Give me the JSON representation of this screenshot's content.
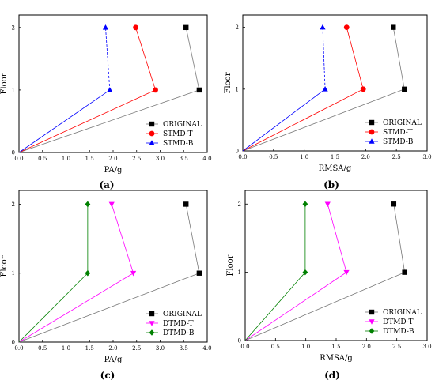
{
  "chart_data": [
    {
      "type": "line",
      "caption": "(a)",
      "xlabel": "PA/g",
      "ylabel": "Floor",
      "xlim": [
        0,
        4.0
      ],
      "ylim": [
        0,
        2.2
      ],
      "xticks": [
        "0.0",
        "0.5",
        "1.0",
        "1.5",
        "2.0",
        "2.5",
        "3.0",
        "3.5",
        "4.0"
      ],
      "yticks": [
        "0",
        "1",
        "2"
      ],
      "legend_position": "lower-right",
      "grid": false,
      "series": [
        {
          "name": "ORIGINAL",
          "color": "#000000",
          "marker": "square",
          "line_color": "#777777",
          "dashed_top": false,
          "x": [
            0,
            3.83,
            3.55
          ],
          "y": [
            0,
            1,
            2
          ]
        },
        {
          "name": "STMD-T",
          "color": "#ff0000",
          "marker": "circle",
          "line_color": "#ff0000",
          "dashed_top": false,
          "x": [
            0,
            2.9,
            2.48
          ],
          "y": [
            0,
            1,
            2
          ]
        },
        {
          "name": "STMD-B",
          "color": "#0000ff",
          "marker": "triangle-up",
          "line_color": "#0000ff",
          "dashed_top": true,
          "x": [
            0,
            1.93,
            1.84
          ],
          "y": [
            0,
            1,
            2
          ]
        }
      ]
    },
    {
      "type": "line",
      "caption": "(b)",
      "xlabel": "RMSA/g",
      "ylabel": "Floor",
      "xlim": [
        0,
        3.0
      ],
      "ylim": [
        0,
        2.2
      ],
      "xticks": [
        "0.0",
        "0.5",
        "1.0",
        "1.5",
        "2.0",
        "2.5",
        "3.0"
      ],
      "yticks": [
        "0",
        "1",
        "2"
      ],
      "legend_position": "lower-right",
      "grid": false,
      "series": [
        {
          "name": "ORIGINAL",
          "color": "#000000",
          "marker": "square",
          "line_color": "#777777",
          "dashed_top": false,
          "x": [
            0,
            2.63,
            2.45
          ],
          "y": [
            0,
            1,
            2
          ]
        },
        {
          "name": "STMD-T",
          "color": "#ff0000",
          "marker": "circle",
          "line_color": "#ff0000",
          "dashed_top": false,
          "x": [
            0,
            1.96,
            1.69
          ],
          "y": [
            0,
            1,
            2
          ]
        },
        {
          "name": "STMD-B",
          "color": "#0000ff",
          "marker": "triangle-up",
          "line_color": "#0000ff",
          "dashed_top": true,
          "x": [
            0,
            1.34,
            1.3
          ],
          "y": [
            0,
            1,
            2
          ]
        }
      ]
    },
    {
      "type": "line",
      "caption": "(c)",
      "xlabel": "PA/g",
      "ylabel": "Floor",
      "xlim": [
        0,
        4.0
      ],
      "ylim": [
        0,
        2.2
      ],
      "xticks": [
        "0.0",
        "0.5",
        "1.0",
        "1.5",
        "2.0",
        "2.5",
        "3.0",
        "3.5",
        "4.0"
      ],
      "yticks": [
        "0",
        "1",
        "2"
      ],
      "legend_position": "lower-right",
      "grid": false,
      "series": [
        {
          "name": "ORIGINAL",
          "color": "#000000",
          "marker": "square",
          "line_color": "#777777",
          "dashed_top": false,
          "x": [
            0,
            3.83,
            3.55
          ],
          "y": [
            0,
            1,
            2
          ]
        },
        {
          "name": "DTMD-T",
          "color": "#ff00ff",
          "marker": "triangle-down",
          "line_color": "#ff00ff",
          "dashed_top": false,
          "x": [
            0,
            2.43,
            1.97
          ],
          "y": [
            0,
            1,
            2
          ]
        },
        {
          "name": "DTMD-B",
          "color": "#008000",
          "marker": "diamond",
          "line_color": "#008000",
          "dashed_top": false,
          "x": [
            0,
            1.46,
            1.46
          ],
          "y": [
            0,
            1,
            2
          ]
        }
      ]
    },
    {
      "type": "line",
      "caption": "(d)",
      "xlabel": "RMSA/g",
      "ylabel": "Floor",
      "xlim": [
        0,
        3.0
      ],
      "ylim": [
        0,
        2.2
      ],
      "xticks": [
        "0.0",
        "0.5",
        "1.0",
        "1.5",
        "2.0",
        "2.5",
        "3.0"
      ],
      "yticks": [
        "0",
        "1",
        "2"
      ],
      "legend_position": "lower-right",
      "grid": false,
      "series": [
        {
          "name": "ORIGINAL",
          "color": "#000000",
          "marker": "square",
          "line_color": "#777777",
          "dashed_top": false,
          "x": [
            0,
            2.63,
            2.45
          ],
          "y": [
            0,
            1,
            2
          ]
        },
        {
          "name": "DTMD-T",
          "color": "#ff00ff",
          "marker": "triangle-down",
          "line_color": "#ff00ff",
          "dashed_top": false,
          "x": [
            0,
            1.67,
            1.36
          ],
          "y": [
            0,
            1,
            2
          ]
        },
        {
          "name": "DTMD-B",
          "color": "#008000",
          "marker": "diamond",
          "line_color": "#008000",
          "dashed_top": false,
          "x": [
            0,
            0.99,
            0.99
          ],
          "y": [
            0,
            1,
            2
          ]
        }
      ]
    }
  ]
}
